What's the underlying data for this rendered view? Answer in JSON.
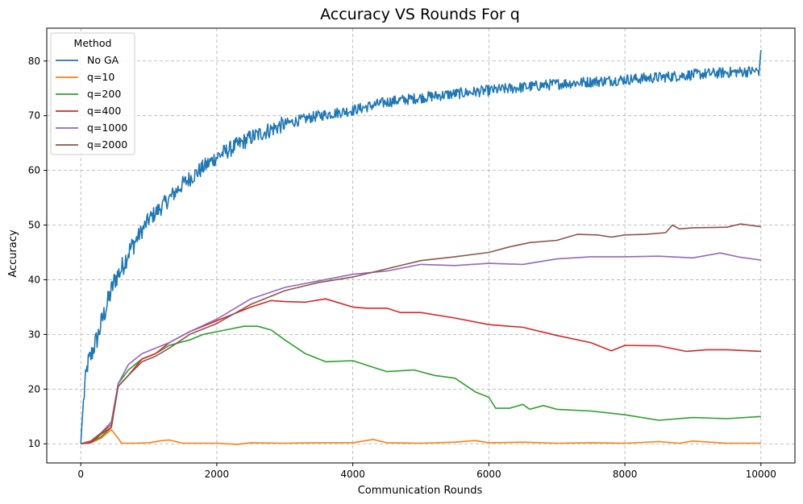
{
  "chart_data": {
    "type": "line",
    "title": "Accuracy VS Rounds For q",
    "xlabel": "Communication Rounds",
    "ylabel": "Accuracy",
    "xlim": [
      -500,
      10500
    ],
    "ylim": [
      6.5,
      86
    ],
    "xticks": [
      0,
      2000,
      4000,
      6000,
      8000,
      10000
    ],
    "yticks": [
      10,
      20,
      30,
      40,
      50,
      60,
      70,
      80
    ],
    "grid": true,
    "legend": {
      "title": "Method",
      "placement": "top-left"
    },
    "series": [
      {
        "name": "No GA",
        "color": "#1f77b4",
        "noisy": true,
        "x": [
          0,
          30,
          60,
          100,
          150,
          200,
          250,
          300,
          400,
          500,
          600,
          700,
          800,
          1000,
          1200,
          1500,
          1800,
          2000,
          2500,
          3000,
          3500,
          4000,
          4500,
          5000,
          5500,
          6000,
          6500,
          7000,
          7500,
          8000,
          8500,
          9000,
          9500,
          9980,
          10000
        ],
        "y": [
          10,
          16,
          20.5,
          24.5,
          26,
          28,
          29.5,
          32,
          36,
          40,
          42,
          45,
          47,
          51,
          53.5,
          57.5,
          60.5,
          62.5,
          66,
          68.5,
          70,
          71,
          72.5,
          73.3,
          74,
          74.6,
          75.2,
          75.8,
          76.2,
          76.6,
          77,
          77.5,
          77.9,
          78.2,
          82
        ]
      },
      {
        "name": "q=10",
        "color": "#ff7f0e",
        "x": [
          0,
          150,
          300,
          450,
          550,
          600,
          800,
          1000,
          1200,
          1300,
          1500,
          2000,
          2300,
          2500,
          3000,
          3500,
          4000,
          4300,
          4500,
          5000,
          5500,
          5800,
          6000,
          6500,
          7000,
          7500,
          8000,
          8500,
          8800,
          9000,
          9500,
          10000
        ],
        "y": [
          10,
          10.2,
          11,
          12.6,
          11,
          10.1,
          10.1,
          10.2,
          10.6,
          10.7,
          10.1,
          10.1,
          9.9,
          10.2,
          10.1,
          10.2,
          10.2,
          10.8,
          10.2,
          10.1,
          10.3,
          10.6,
          10.2,
          10.3,
          10.1,
          10.2,
          10.1,
          10.4,
          10.1,
          10.5,
          10.1,
          10.1
        ]
      },
      {
        "name": "q=200",
        "color": "#2ca02c",
        "x": [
          0,
          150,
          300,
          450,
          550,
          700,
          900,
          1100,
          1300,
          1600,
          1800,
          2000,
          2200,
          2400,
          2600,
          2800,
          3000,
          3300,
          3600,
          4000,
          4500,
          4900,
          5200,
          5500,
          5800,
          6000,
          6100,
          6300,
          6500,
          6600,
          6800,
          7000,
          7500,
          8000,
          8500,
          9000,
          9500,
          10000
        ],
        "y": [
          10,
          10.3,
          11.3,
          13,
          21,
          23.5,
          25.5,
          26.5,
          28,
          29,
          30,
          30.5,
          31,
          31.5,
          31.5,
          30.8,
          29,
          26.5,
          25,
          25.2,
          23.2,
          23.5,
          22.5,
          22,
          19.5,
          18.5,
          16.5,
          16.5,
          17.2,
          16.3,
          17,
          16.3,
          16.0,
          15.3,
          14.3,
          14.8,
          14.6,
          15.0
        ]
      },
      {
        "name": "q=400",
        "color": "#d62728",
        "x": [
          0,
          150,
          300,
          450,
          550,
          700,
          900,
          1100,
          1300,
          1600,
          2000,
          2500,
          2800,
          3000,
          3300,
          3600,
          4000,
          4200,
          4500,
          4700,
          5000,
          5500,
          6000,
          6500,
          7000,
          7500,
          7800,
          8000,
          8500,
          8900,
          9200,
          9500,
          10000
        ],
        "y": [
          10,
          10.2,
          11.8,
          13,
          20.5,
          22.5,
          25.5,
          26.5,
          28.5,
          30.5,
          32.5,
          35,
          36.2,
          36,
          35.9,
          36.5,
          35,
          34.8,
          34.8,
          34,
          34,
          33,
          31.8,
          31.3,
          29.8,
          28.5,
          27.0,
          28.0,
          27.9,
          26.9,
          27.2,
          27.2,
          26.9
        ]
      },
      {
        "name": "q=1000",
        "color": "#9467bd",
        "x": [
          0,
          150,
          300,
          450,
          550,
          700,
          900,
          1100,
          1300,
          1600,
          2000,
          2500,
          3000,
          3500,
          4000,
          4500,
          5000,
          5500,
          6000,
          6500,
          7000,
          7500,
          8000,
          8500,
          9000,
          9400,
          9700,
          10000
        ],
        "y": [
          10,
          10.5,
          12,
          14,
          21,
          24.5,
          26.5,
          27.5,
          28.5,
          30.5,
          32.8,
          36.5,
          38.6,
          39.8,
          41,
          41.6,
          42.8,
          42.6,
          43.0,
          42.8,
          43.8,
          44.2,
          44.2,
          44.3,
          44,
          44.9,
          44.1,
          43.6
        ]
      },
      {
        "name": "q=2000",
        "color": "#8c564b",
        "x": [
          0,
          150,
          300,
          450,
          550,
          700,
          900,
          1100,
          1300,
          1600,
          2000,
          2500,
          3000,
          3500,
          4000,
          4500,
          5000,
          5500,
          6000,
          6300,
          6600,
          7000,
          7300,
          7600,
          7800,
          8000,
          8300,
          8600,
          8700,
          8800,
          9000,
          9500,
          9700,
          10000
        ],
        "y": [
          10,
          10.5,
          12,
          13.5,
          20.5,
          22.5,
          25,
          26,
          27.5,
          30,
          32,
          35.5,
          38,
          39.5,
          40.5,
          42,
          43.5,
          44.2,
          45,
          46,
          46.8,
          47.2,
          48.3,
          48.2,
          47.8,
          48.2,
          48.3,
          48.6,
          50.0,
          49.3,
          49.5,
          49.6,
          50.2,
          49.7
        ]
      }
    ]
  }
}
